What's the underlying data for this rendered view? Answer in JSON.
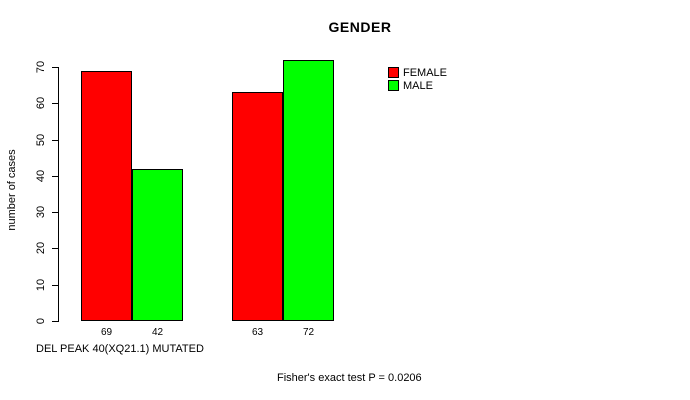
{
  "chart": {
    "title": "GENDER",
    "ylabel": "number of cases",
    "x_annotation": "DEL PEAK 40(XQ21.1) MUTATED",
    "footer": "Fisher's exact test P = 0.0206"
  },
  "colors": {
    "female": "#ff0000",
    "male": "#00ff00",
    "axis": "#000000",
    "background": "#ffffff"
  },
  "chart_data": {
    "type": "bar",
    "title": "GENDER",
    "ylabel": "number of cases",
    "xlabel": "DEL PEAK 40(XQ21.1) MUTATED",
    "annotation": "Fisher's exact test P = 0.0206",
    "categories": [
      "",
      ""
    ],
    "series": [
      {
        "name": "FEMALE",
        "color": "#ff0000",
        "values": [
          69,
          63
        ]
      },
      {
        "name": "MALE",
        "color": "#00ff00",
        "values": [
          42,
          72
        ]
      }
    ],
    "bar_value_labels": [
      [
        69,
        42
      ],
      [
        63,
        72
      ]
    ],
    "yticks": [
      0,
      10,
      20,
      30,
      40,
      50,
      60,
      70
    ],
    "ylim": [
      0,
      70
    ],
    "grid": false,
    "legend_position": "top-right"
  }
}
